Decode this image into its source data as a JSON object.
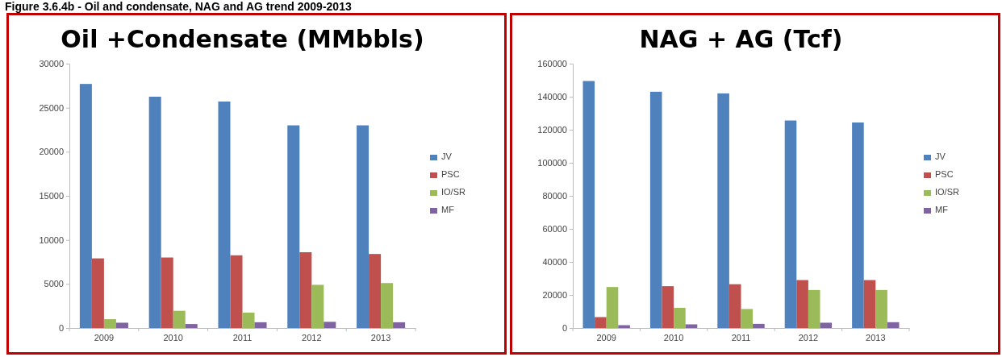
{
  "chart_data": [
    {
      "type": "bar",
      "title": "Oil +Condensate (MMbbls)",
      "annotations": [
        "Figure 3.6.4b - Oil and condensate, NAG and AG trend 2009-2013"
      ],
      "categories": [
        "2009",
        "2010",
        "2011",
        "2012",
        "2013"
      ],
      "ylim": [
        0,
        30000
      ],
      "yticks": [
        0,
        5000,
        10000,
        15000,
        20000,
        25000,
        30000
      ],
      "grid": false,
      "legend": "right",
      "series": [
        {
          "name": "JV",
          "color": "#4f81bd",
          "values": [
            27700,
            26250,
            25700,
            23000,
            23000
          ]
        },
        {
          "name": "PSC",
          "color": "#c0504d",
          "values": [
            7900,
            8000,
            8250,
            8600,
            8400
          ]
        },
        {
          "name": "IO/SR",
          "color": "#9bbb59",
          "values": [
            1000,
            1950,
            1750,
            4900,
            5100
          ]
        },
        {
          "name": "MF",
          "color": "#8064a2",
          "values": [
            600,
            450,
            650,
            700,
            650
          ]
        }
      ]
    },
    {
      "type": "bar",
      "title": "NAG + AG (Tcf)",
      "categories": [
        "2009",
        "2010",
        "2011",
        "2012",
        "2013"
      ],
      "ylim": [
        0,
        160000
      ],
      "yticks": [
        0,
        20000,
        40000,
        60000,
        80000,
        100000,
        120000,
        140000,
        160000
      ],
      "grid": false,
      "legend": "right",
      "series": [
        {
          "name": "JV",
          "color": "#4f81bd",
          "values": [
            149500,
            143000,
            142000,
            125600,
            124400
          ]
        },
        {
          "name": "PSC",
          "color": "#c0504d",
          "values": [
            6600,
            25300,
            26500,
            29000,
            29000
          ]
        },
        {
          "name": "IO/SR",
          "color": "#9bbb59",
          "values": [
            24800,
            12200,
            11500,
            23000,
            23000
          ]
        },
        {
          "name": "MF",
          "color": "#8064a2",
          "values": [
            1700,
            2200,
            2500,
            3200,
            3500
          ]
        }
      ]
    }
  ]
}
